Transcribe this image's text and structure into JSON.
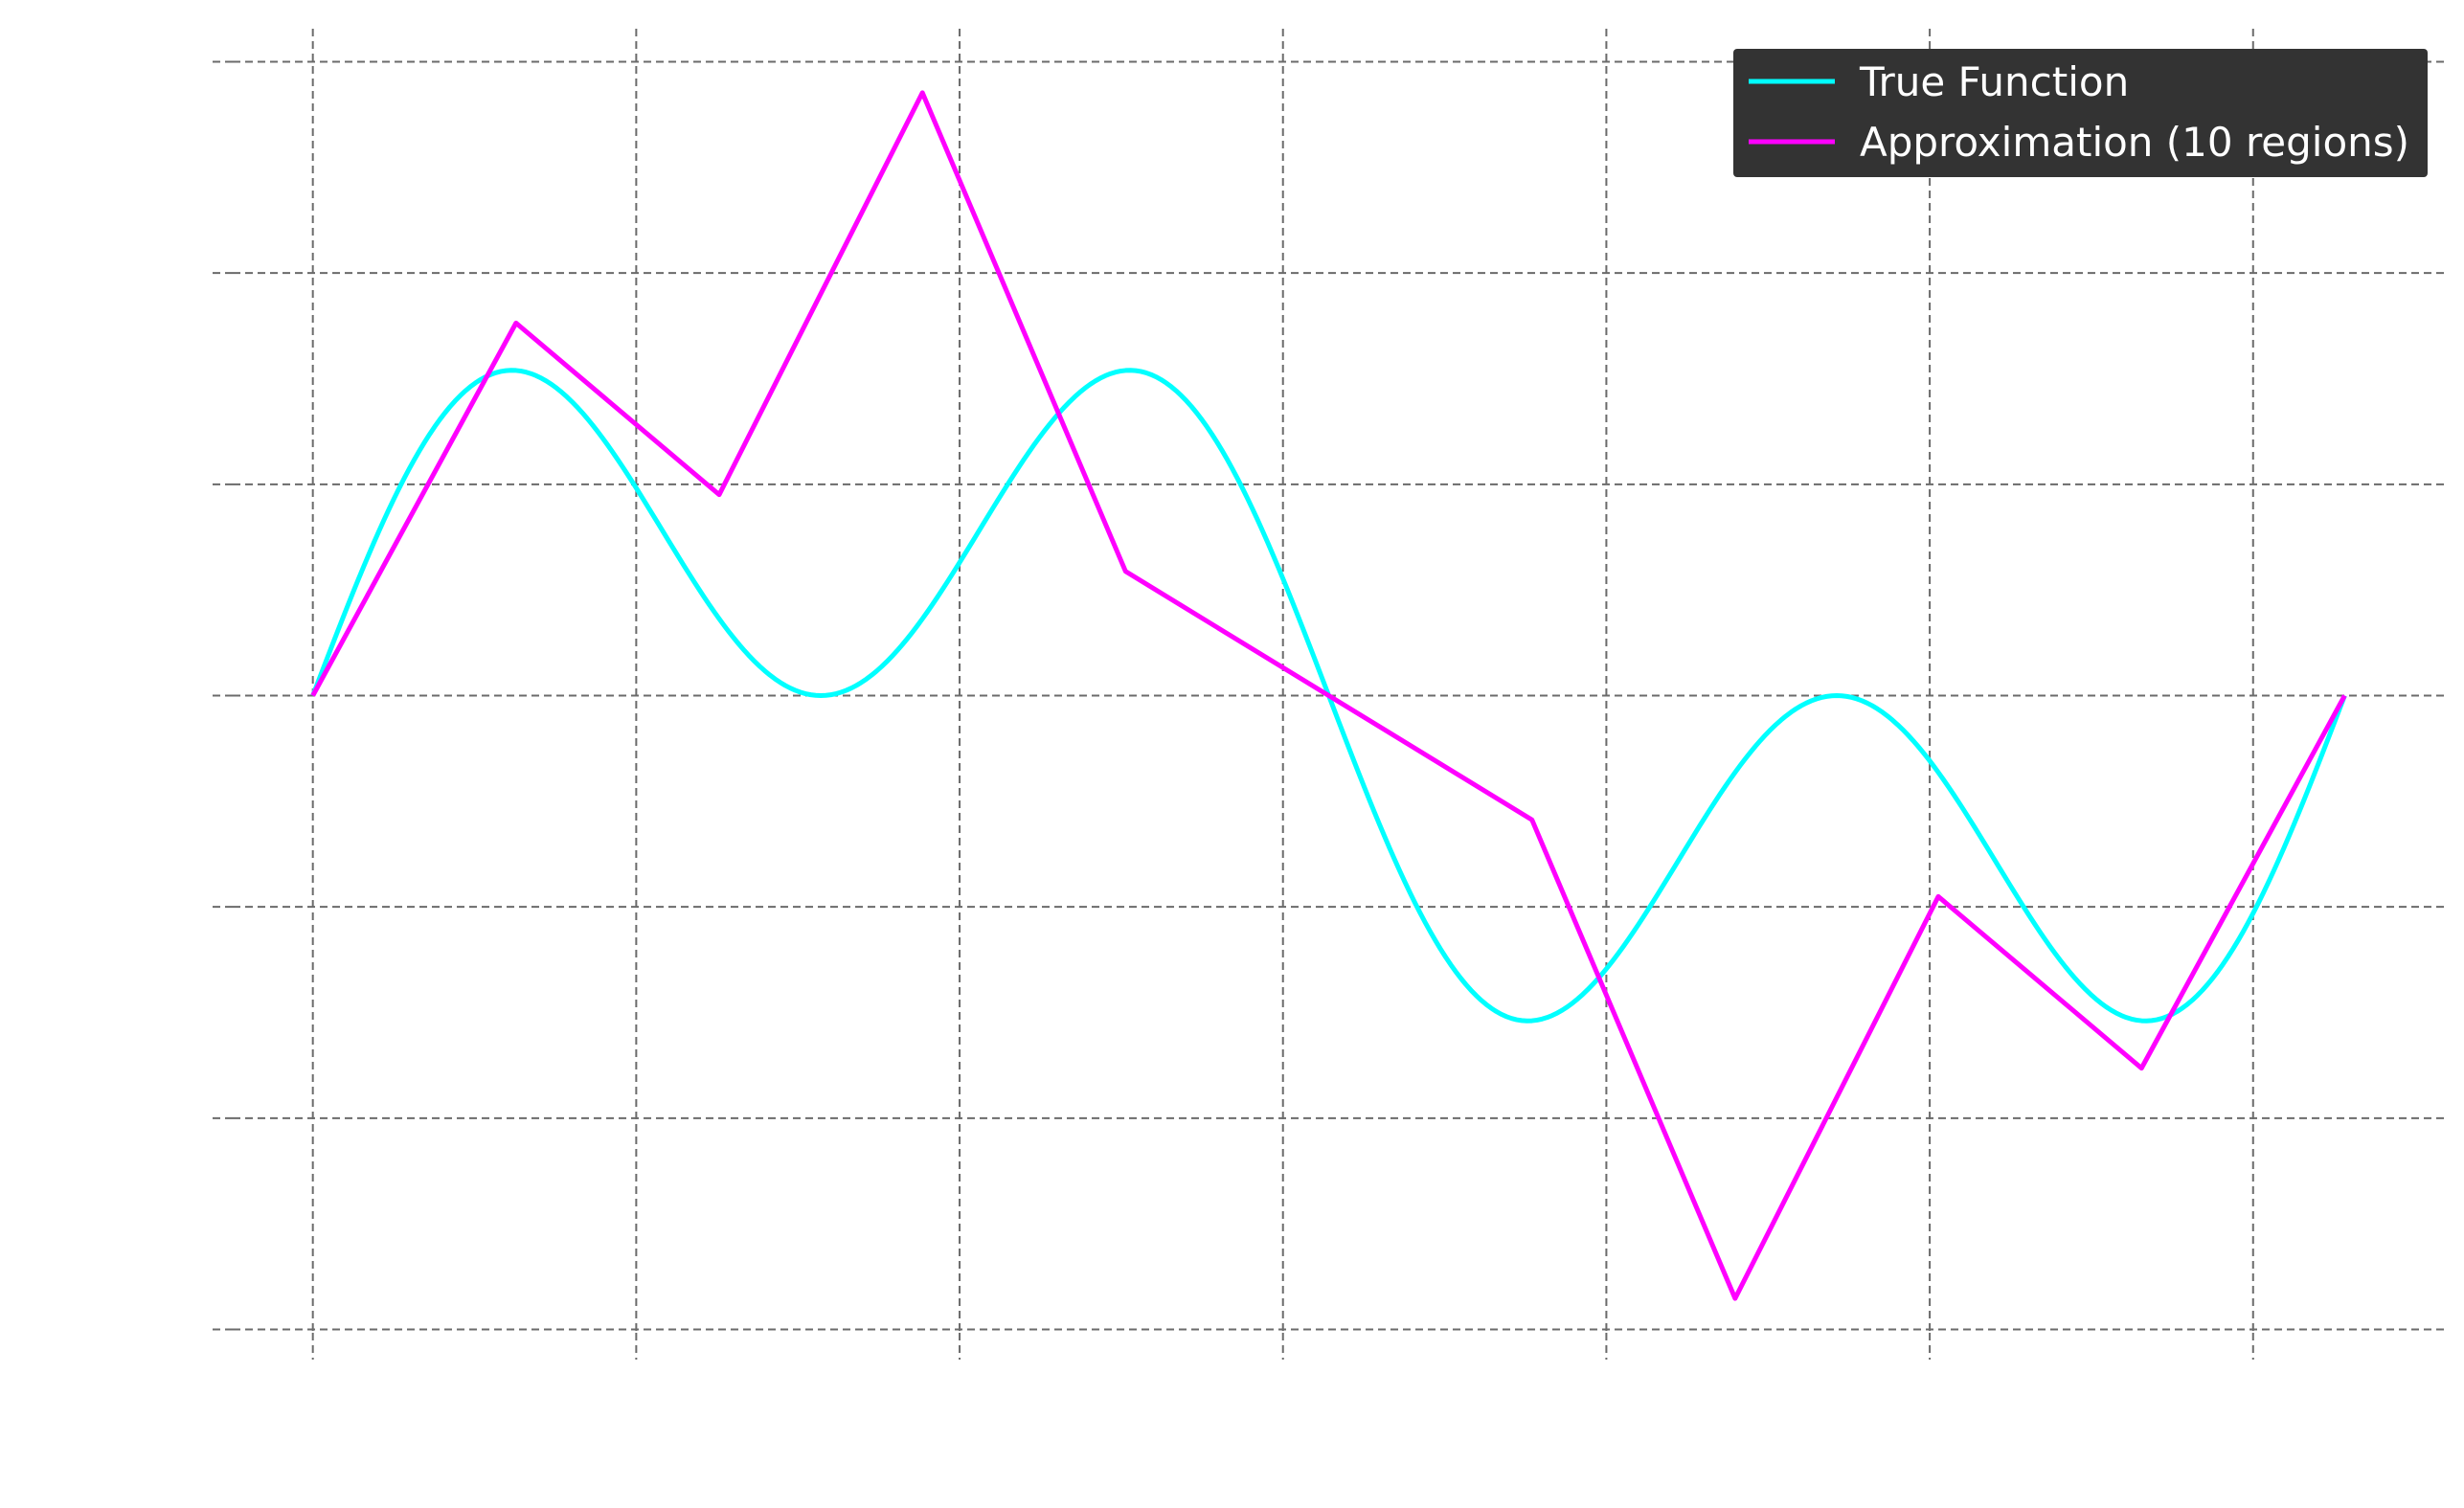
{
  "chart_data": {
    "type": "line",
    "title": "",
    "xlabel": "",
    "ylabel": "",
    "xlim": [
      -0.31,
      6.59
    ],
    "ylim": [
      -3.12,
      3.12
    ],
    "x_grid_values": [
      0,
      1,
      2,
      3,
      4,
      5,
      6
    ],
    "y_grid_values": [
      -3,
      -2,
      -1,
      0,
      1,
      2,
      3
    ],
    "grid": true,
    "tick_labels_visible": false,
    "legend_position": "top-right",
    "series": [
      {
        "name": "True Function",
        "color": "#00ffff",
        "formula": "sin(x) + sin(3x)",
        "x_start": 0,
        "x_end": 6.2832,
        "samples": 400
      },
      {
        "name": "Approximation (10 regions)",
        "color": "#ff00ff",
        "x": [
          0,
          0.6283,
          1.2566,
          1.885,
          2.5133,
          3.1416,
          3.7699,
          4.3982,
          5.0265,
          5.6549,
          6.2832
        ],
        "y": [
          0,
          1.7634,
          0.9511,
          2.8532,
          0.5878,
          0,
          -0.5878,
          -2.8532,
          -0.9511,
          -1.7634,
          0
        ]
      }
    ]
  }
}
